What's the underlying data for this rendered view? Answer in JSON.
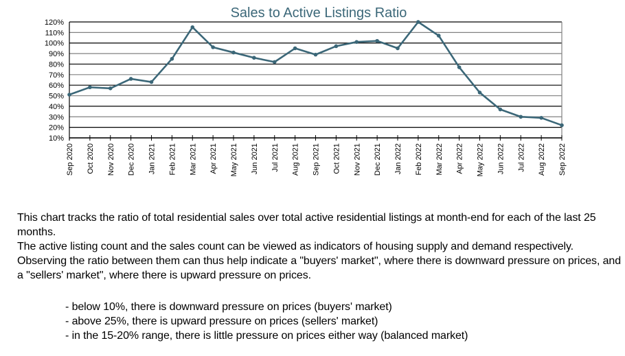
{
  "chart_data": {
    "type": "line",
    "title": "Sales to Active Listings Ratio",
    "xlabel": "",
    "ylabel": "",
    "ylim": [
      10,
      120
    ],
    "y_unit": "%",
    "yticks": [
      10,
      20,
      30,
      40,
      50,
      60,
      70,
      80,
      90,
      100,
      110,
      120
    ],
    "ytick_labels": [
      "10%",
      "20%",
      "30%",
      "40%",
      "50%",
      "60%",
      "70%",
      "80%",
      "90%",
      "100%",
      "110%",
      "120%"
    ],
    "grid": true,
    "legend": "none",
    "categories": [
      "Sep 2020",
      "Oct 2020",
      "Nov 2020",
      "Dec 2020",
      "Jan 2021",
      "Feb 2021",
      "Mar 2021",
      "Apr 2021",
      "May 2021",
      "Jun 2021",
      "Jul 2021",
      "Aug 2021",
      "Sep 2021",
      "Oct 2021",
      "Nov 2021",
      "Dec 2021",
      "Jan 2022",
      "Feb 2022",
      "Mar 2022",
      "Apr 2022",
      "May 2022",
      "Jun 2022",
      "Jul 2022",
      "Aug 2022",
      "Sep 2022"
    ],
    "series": [
      {
        "name": "Sales to Active Listings Ratio",
        "color": "#3b6778",
        "values": [
          51,
          58,
          57,
          66,
          63,
          85,
          115,
          96,
          91,
          86,
          82,
          95,
          89,
          97,
          101,
          102,
          95,
          120,
          107,
          77,
          53,
          37,
          30,
          29,
          22
        ]
      }
    ]
  },
  "colors": {
    "title": "#3b6778",
    "line": "#3b6778",
    "grid_dark": "#000000",
    "grid_light": "#808080"
  },
  "description": {
    "para1": "This chart tracks the ratio of total residential sales over total active residential listings at month-end for each of the last 25 months.",
    "para2": "The active listing count and the sales count can be viewed as indicators of housing supply and demand respectively.  Observing the ratio between them can thus help indicate a \"buyers' market\", where there is downward pressure on prices, and a \"sellers' market\", where there is upward pressure on prices.",
    "bullets": [
      "- below 10%, there is downward pressure on prices (buyers' market)",
      "- above 25%, there is upward pressure on prices (sellers' market)",
      "- in the 15-20% range, there is little pressure on prices either way (balanced market)"
    ]
  }
}
